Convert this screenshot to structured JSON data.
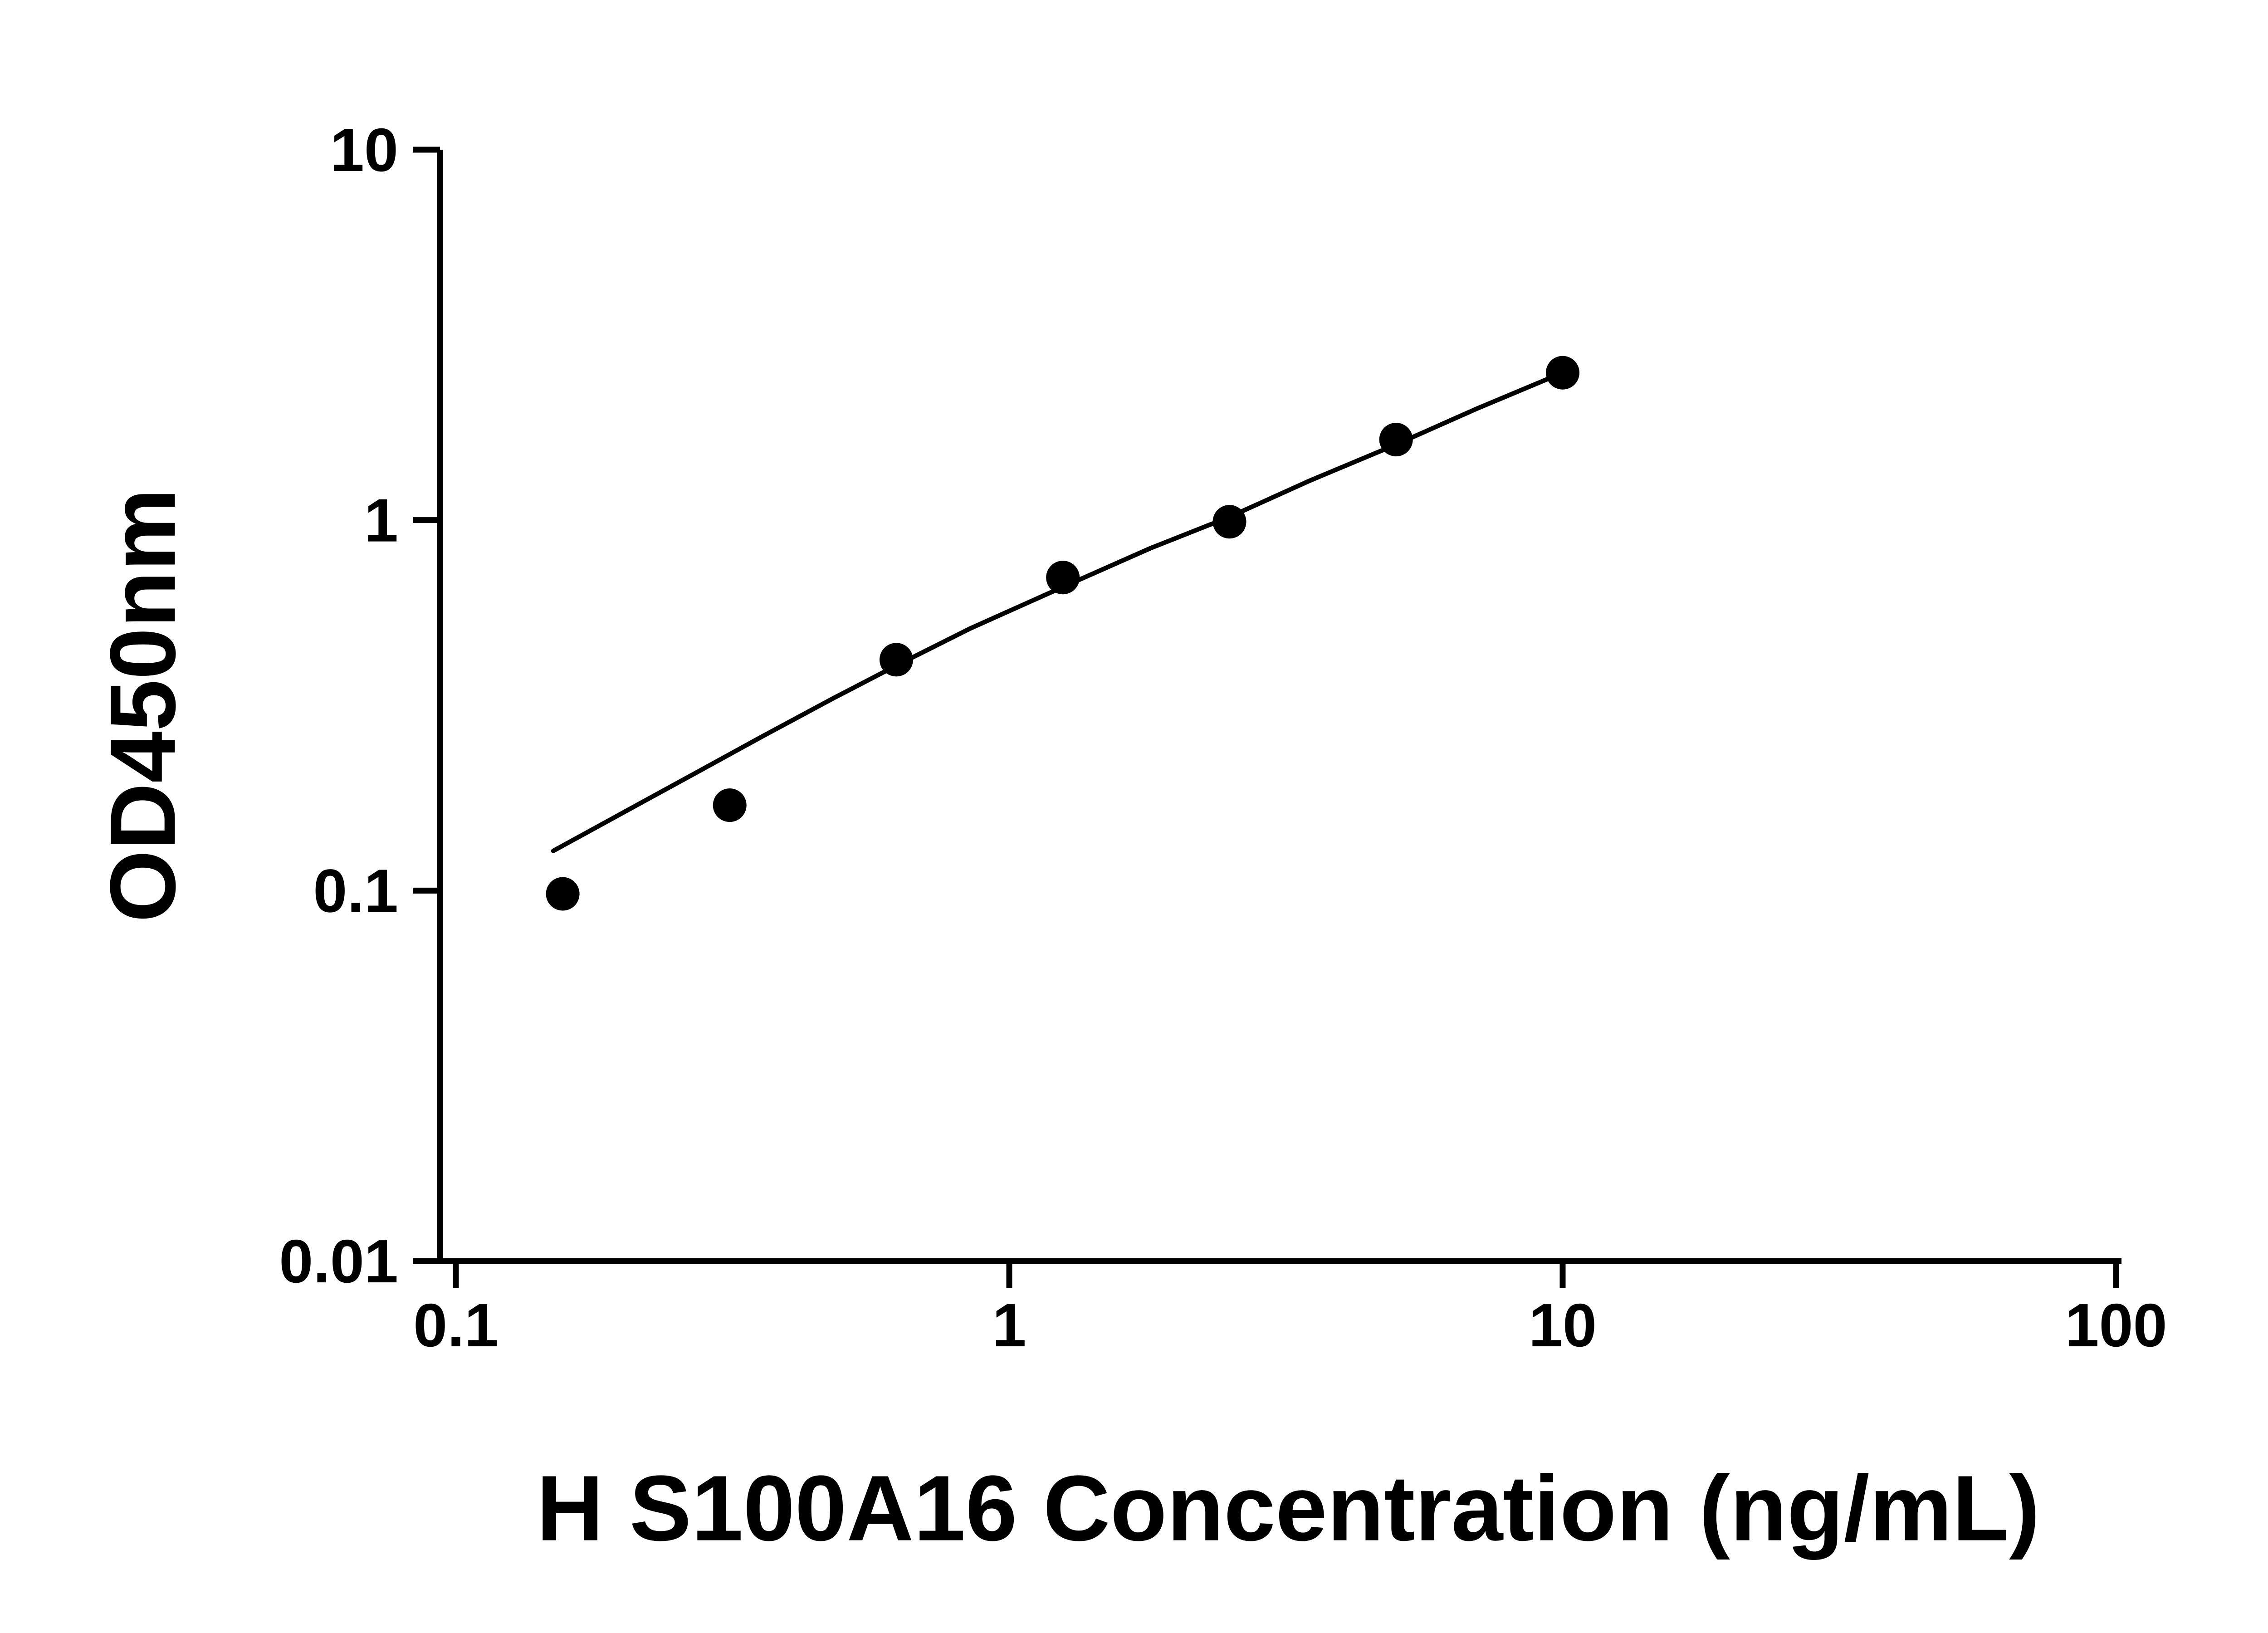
{
  "figure": {
    "background_color": "#ffffff",
    "foreground_color": "#000000"
  },
  "chart_data": {
    "type": "scatter",
    "title": "",
    "xlabel": "H S100A16 Concentration (ng/mL)",
    "ylabel": "OD450nm",
    "x_scale": "log",
    "y_scale": "log",
    "xlim": [
      0.1,
      100
    ],
    "ylim": [
      0.01,
      10
    ],
    "x_ticks": [
      0.1,
      1,
      10,
      100
    ],
    "x_tick_labels": [
      "0.1",
      "1",
      "10",
      "100"
    ],
    "y_ticks": [
      0.01,
      0.1,
      1,
      10
    ],
    "y_tick_labels": [
      "0.01",
      "0.1",
      "1",
      "10"
    ],
    "grid": false,
    "legend": false,
    "series": [
      {
        "name": "standard-curve-points",
        "type": "scatter",
        "marker": "circle",
        "color": "#000000",
        "points": [
          {
            "x": 0.156,
            "y": 0.098
          },
          {
            "x": 0.3125,
            "y": 0.17
          },
          {
            "x": 0.625,
            "y": 0.42
          },
          {
            "x": 1.25,
            "y": 0.7
          },
          {
            "x": 2.5,
            "y": 0.99
          },
          {
            "x": 5,
            "y": 1.65
          },
          {
            "x": 10,
            "y": 2.5
          }
        ]
      },
      {
        "name": "fitted-curve",
        "type": "line",
        "color": "#000000",
        "points": [
          {
            "x": 0.15,
            "y": 0.128
          },
          {
            "x": 0.2,
            "y": 0.162
          },
          {
            "x": 0.27,
            "y": 0.207
          },
          {
            "x": 0.36,
            "y": 0.262
          },
          {
            "x": 0.48,
            "y": 0.33
          },
          {
            "x": 0.625,
            "y": 0.405
          },
          {
            "x": 0.85,
            "y": 0.51
          },
          {
            "x": 1.25,
            "y": 0.66
          },
          {
            "x": 1.8,
            "y": 0.84
          },
          {
            "x": 2.5,
            "y": 1.02
          },
          {
            "x": 3.5,
            "y": 1.28
          },
          {
            "x": 5,
            "y": 1.6
          },
          {
            "x": 7,
            "y": 2.0
          },
          {
            "x": 10,
            "y": 2.5
          }
        ]
      }
    ]
  }
}
